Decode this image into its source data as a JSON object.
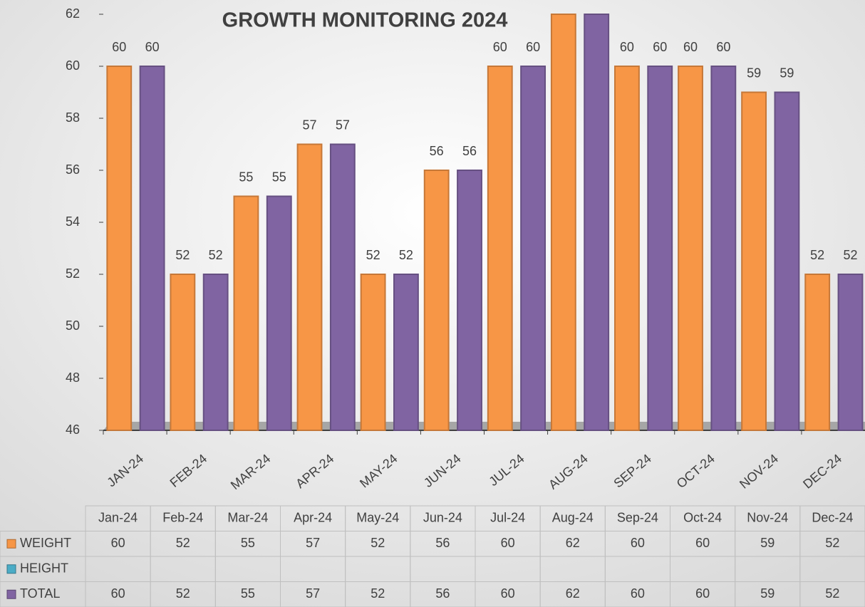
{
  "chart_data": {
    "type": "bar",
    "title": "GROWTH MONITORING 2024",
    "categories": [
      "JAN-24",
      "FEB-24",
      "MAR-24",
      "APR-24",
      "MAY-24",
      "JUN-24",
      "JUL-24",
      "AUG-24",
      "SEP-24",
      "OCT-24",
      "NOV-24",
      "DEC-24"
    ],
    "series": [
      {
        "name": "WEIGHT",
        "color": "#f79646",
        "values": [
          60,
          52,
          55,
          57,
          52,
          56,
          60,
          62,
          60,
          60,
          59,
          52
        ]
      },
      {
        "name": "HEIGHT",
        "color": "#4bacc6",
        "values": [
          null,
          null,
          null,
          null,
          null,
          null,
          null,
          null,
          null,
          null,
          null,
          null
        ]
      },
      {
        "name": "TOTAL",
        "color": "#8064a2",
        "values": [
          60,
          52,
          55,
          57,
          52,
          56,
          60,
          62,
          60,
          60,
          59,
          52
        ]
      }
    ],
    "ylim": [
      46,
      62
    ],
    "yticks": [
      46,
      48,
      50,
      52,
      54,
      56,
      58,
      60,
      62
    ],
    "grid": false,
    "data_table": {
      "columns": [
        "Jan-24",
        "Feb-24",
        "Mar-24",
        "Apr-24",
        "May-24",
        "Jun-24",
        "Jul-24",
        "Aug-24",
        "Sep-24",
        "Oct-24",
        "Nov-24",
        "Dec-24"
      ]
    }
  }
}
